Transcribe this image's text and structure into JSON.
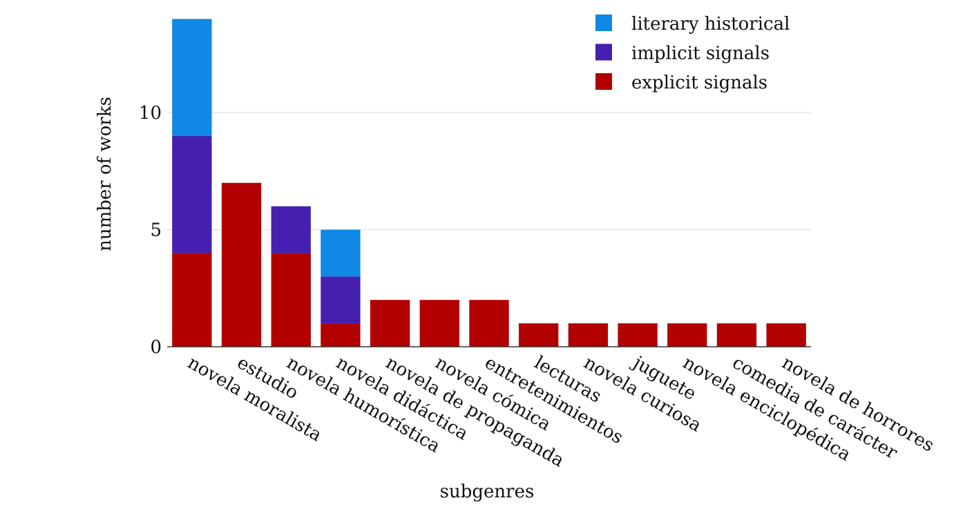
{
  "chart_data": {
    "type": "bar",
    "stacked": true,
    "categories": [
      "novela moralista",
      "estudio",
      "novela humorística",
      "novela didáctica",
      "novela de propaganda",
      "novela cómica",
      "entretenimientos",
      "lecturas",
      "novela curiosa",
      "juguete",
      "novela enciclopédica",
      "comedia de carácter",
      "novela de horrores"
    ],
    "series": [
      {
        "name": "explicit signals",
        "color": "#b20000",
        "values": [
          4,
          7,
          4,
          1,
          2,
          2,
          2,
          1,
          1,
          1,
          1,
          1,
          1
        ]
      },
      {
        "name": "implicit signals",
        "color": "#4520b0",
        "values": [
          5,
          0,
          2,
          2,
          0,
          0,
          0,
          0,
          0,
          0,
          0,
          0,
          0
        ]
      },
      {
        "name": "literary historical",
        "color": "#0f88e6",
        "values": [
          5,
          0,
          0,
          2,
          0,
          0,
          0,
          0,
          0,
          0,
          0,
          0,
          0
        ]
      }
    ],
    "title": "",
    "xlabel": "subgenres",
    "ylabel": "number of works",
    "ylim": [
      0,
      14
    ],
    "yticks": [
      0,
      5,
      10
    ],
    "grid": true,
    "legend_position": "top-right"
  }
}
